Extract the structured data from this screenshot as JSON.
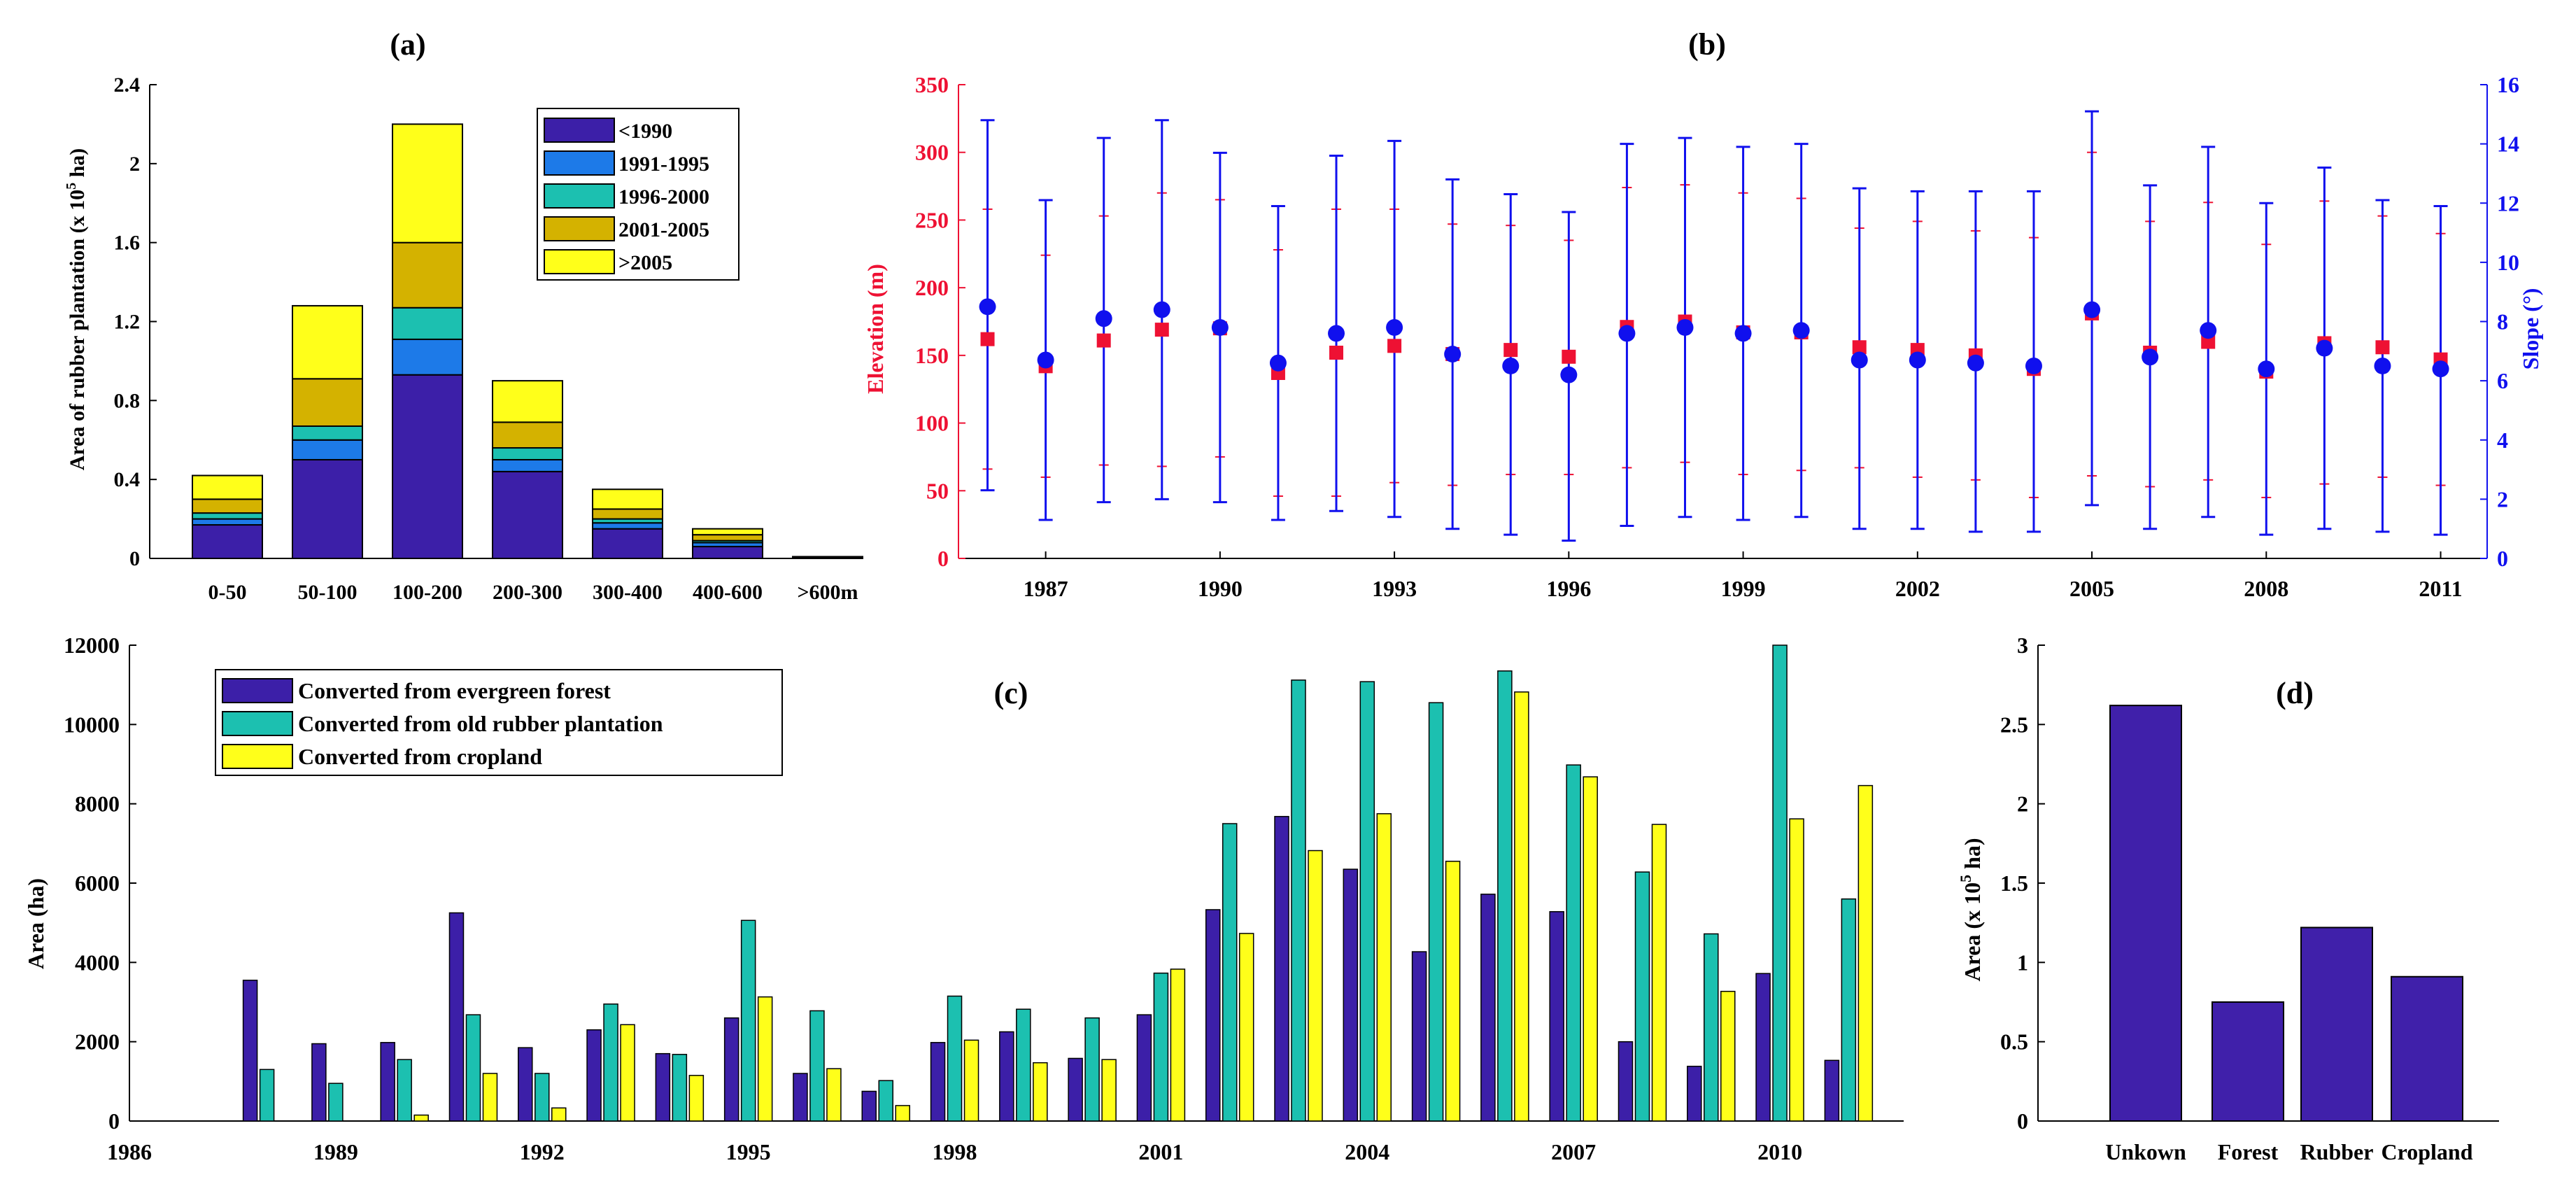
{
  "colors": {
    "c1990": "#3c1fa8",
    "c1995": "#1d7ae8",
    "c2000": "#1cc0b0",
    "c2005": "#d4b200",
    "c2005p": "#ffff1a",
    "evergreen": "#3c1fa8",
    "oldrubber": "#1cc0b0",
    "cropland": "#ffff1a",
    "elevation": "#ee1133",
    "slope": "#1010ee",
    "bar_d": "#4020aa"
  },
  "chart_data": [
    {
      "id": "a",
      "type": "bar",
      "stacked": true,
      "title": "(a)",
      "ylabel": "Area of rubber plantation (x 10",
      "ylabel_sup": "5",
      "ylabel_end": " ha)",
      "ylim": [
        0,
        2.4
      ],
      "yticks": [
        0,
        0.4,
        0.8,
        1.2,
        1.6,
        2,
        2.4
      ],
      "ytick_labels": [
        "0",
        "0.4",
        "0.8",
        "1.2",
        "1.6",
        "2",
        "2.4"
      ],
      "categories": [
        "0-50",
        "50-100",
        "100-200",
        "200-300",
        "300-400",
        "400-600",
        ">600m"
      ],
      "legend_position": "top-right",
      "series": [
        {
          "name": "<1990",
          "color_key": "c1990",
          "values": [
            0.17,
            0.5,
            0.93,
            0.44,
            0.15,
            0.06,
            0.005
          ]
        },
        {
          "name": "1991-1995",
          "color_key": "c1995",
          "values": [
            0.03,
            0.1,
            0.18,
            0.06,
            0.03,
            0.02,
            0.001
          ]
        },
        {
          "name": "1996-2000",
          "color_key": "c2000",
          "values": [
            0.03,
            0.07,
            0.16,
            0.06,
            0.02,
            0.01,
            0.001
          ]
        },
        {
          "name": "2001-2005",
          "color_key": "c2005",
          "values": [
            0.07,
            0.24,
            0.33,
            0.13,
            0.05,
            0.03,
            0.001
          ]
        },
        {
          "name": ">2005",
          "color_key": "c2005p",
          "values": [
            0.12,
            0.37,
            0.6,
            0.21,
            0.1,
            0.03,
            0.001
          ]
        }
      ]
    },
    {
      "id": "b",
      "type": "scatter",
      "title": "(b)",
      "ylabel_left": "Elevation (m)",
      "ylabel_right": "Slope (°)",
      "xlim": [
        1985.5,
        2011.8
      ],
      "xticks": [
        1987,
        1990,
        1993,
        1996,
        1999,
        2002,
        2005,
        2008,
        2011
      ],
      "xtick_labels": [
        "1987",
        "1990",
        "1993",
        "1996",
        "1999",
        "2002",
        "2005",
        "2008",
        "2011"
      ],
      "ylim_left": [
        0,
        350
      ],
      "yticks_left": [
        0,
        50,
        100,
        150,
        200,
        250,
        300,
        350
      ],
      "ytick_labels_left": [
        "0",
        "50",
        "100",
        "150",
        "200",
        "250",
        "300",
        "350"
      ],
      "ylim_right": [
        0,
        16
      ],
      "yticks_right": [
        0,
        2,
        4,
        6,
        8,
        10,
        12,
        14,
        16
      ],
      "ytick_labels_right": [
        "0",
        "2",
        "4",
        "6",
        "8",
        "10",
        "12",
        "14",
        "16"
      ],
      "years": [
        1986,
        1987,
        1988,
        1989,
        1990,
        1991,
        1992,
        1993,
        1994,
        1995,
        1996,
        1997,
        1998,
        1999,
        2000,
        2001,
        2002,
        2003,
        2004,
        2005,
        2006,
        2007,
        2008,
        2009,
        2010,
        2011
      ],
      "elevation_mean": [
        162,
        142,
        161,
        169,
        170,
        137,
        152,
        157,
        151,
        154,
        149,
        171,
        175,
        167,
        167,
        156,
        154,
        150,
        140,
        181,
        152,
        160,
        138,
        159,
        156,
        147
      ],
      "elevation_upper": [
        258,
        224,
        253,
        270,
        265,
        228,
        258,
        258,
        247,
        246,
        235,
        274,
        276,
        270,
        266,
        244,
        249,
        242,
        237,
        300,
        249,
        263,
        232,
        264,
        253,
        240
      ],
      "elevation_lower": [
        66,
        60,
        69,
        68,
        75,
        46,
        46,
        56,
        54,
        62,
        62,
        67,
        71,
        62,
        65,
        67,
        60,
        58,
        45,
        61,
        53,
        58,
        45,
        55,
        60,
        54
      ],
      "slope_mean": [
        8.5,
        6.7,
        8.1,
        8.4,
        7.8,
        6.6,
        7.6,
        7.8,
        6.9,
        6.5,
        6.2,
        7.6,
        7.8,
        7.6,
        7.7,
        6.7,
        6.7,
        6.6,
        6.5,
        8.4,
        6.8,
        7.7,
        6.4,
        7.1,
        6.5,
        6.4
      ],
      "slope_upper": [
        14.8,
        12.1,
        14.2,
        14.8,
        13.7,
        11.9,
        13.6,
        14.1,
        12.8,
        12.3,
        11.7,
        14.0,
        14.2,
        13.9,
        14.0,
        12.5,
        12.4,
        12.4,
        12.4,
        15.1,
        12.6,
        13.9,
        12.0,
        13.2,
        12.1,
        11.9
      ],
      "slope_lower": [
        2.3,
        1.3,
        1.9,
        2.0,
        1.9,
        1.3,
        1.6,
        1.4,
        1.0,
        0.8,
        0.6,
        1.1,
        1.4,
        1.3,
        1.4,
        1.0,
        1.0,
        0.9,
        0.9,
        1.8,
        1.0,
        1.4,
        0.8,
        1.0,
        0.9,
        0.8
      ]
    },
    {
      "id": "c",
      "type": "bar",
      "title": "(c)",
      "ylabel": "Area (ha)",
      "ylim": [
        0,
        12000
      ],
      "yticks": [
        0,
        2000,
        4000,
        6000,
        8000,
        10000,
        12000
      ],
      "ytick_labels": [
        "0",
        "2000",
        "4000",
        "6000",
        "8000",
        "10000",
        "12000"
      ],
      "xlim": [
        1986,
        2011.8
      ],
      "xticks": [
        1986,
        1989,
        1992,
        1995,
        1998,
        2001,
        2004,
        2007,
        2010
      ],
      "xtick_labels": [
        "1986",
        "1989",
        "1992",
        "1995",
        "1998",
        "2001",
        "2004",
        "2007",
        "2010"
      ],
      "years": [
        1986,
        1987,
        1988,
        1989,
        1990,
        1991,
        1992,
        1993,
        1994,
        1995,
        1996,
        1997,
        1998,
        1999,
        2000,
        2001,
        2002,
        2003,
        2004,
        2005,
        2006,
        2007,
        2008,
        2009,
        2010,
        2011
      ],
      "legend_position": "top-left",
      "series": [
        {
          "name": "Converted from evergreen forest",
          "color_key": "evergreen",
          "values": [
            0,
            0,
            3550,
            1950,
            1980,
            5250,
            1850,
            2300,
            1700,
            2600,
            1200,
            750,
            1980,
            2250,
            1580,
            2680,
            5330,
            7680,
            6350,
            4270,
            5720,
            5280,
            2000,
            1380,
            3720,
            1530
          ]
        },
        {
          "name": "Converted from old rubber plantation",
          "color_key": "oldrubber",
          "values": [
            0,
            0,
            1300,
            950,
            1550,
            2680,
            1200,
            2950,
            1680,
            5060,
            2780,
            1020,
            3150,
            2820,
            2600,
            3730,
            7500,
            11120,
            11080,
            10550,
            11350,
            8980,
            6280,
            4720,
            12000,
            5600
          ]
        },
        {
          "name": "Converted from cropland",
          "color_key": "cropland",
          "values": [
            0,
            0,
            0,
            0,
            150,
            1200,
            330,
            2430,
            1150,
            3130,
            1320,
            390,
            2040,
            1470,
            1550,
            3830,
            4730,
            6820,
            7750,
            6550,
            10820,
            8680,
            7480,
            3270,
            7620,
            8460
          ]
        }
      ]
    },
    {
      "id": "d",
      "type": "bar",
      "title": "(d)",
      "ylabel": "Area (x 10",
      "ylabel_sup": "5",
      "ylabel_end": " ha)",
      "ylim": [
        0,
        3
      ],
      "yticks": [
        0,
        0.5,
        1,
        1.5,
        2,
        2.5,
        3
      ],
      "ytick_labels": [
        "0",
        "0.5",
        "1",
        "1.5",
        "2",
        "2.5",
        "3"
      ],
      "categories": [
        "Unkown",
        "Forest",
        "Rubber",
        "Cropland"
      ],
      "values": [
        2.62,
        0.75,
        1.22,
        0.91
      ]
    }
  ]
}
